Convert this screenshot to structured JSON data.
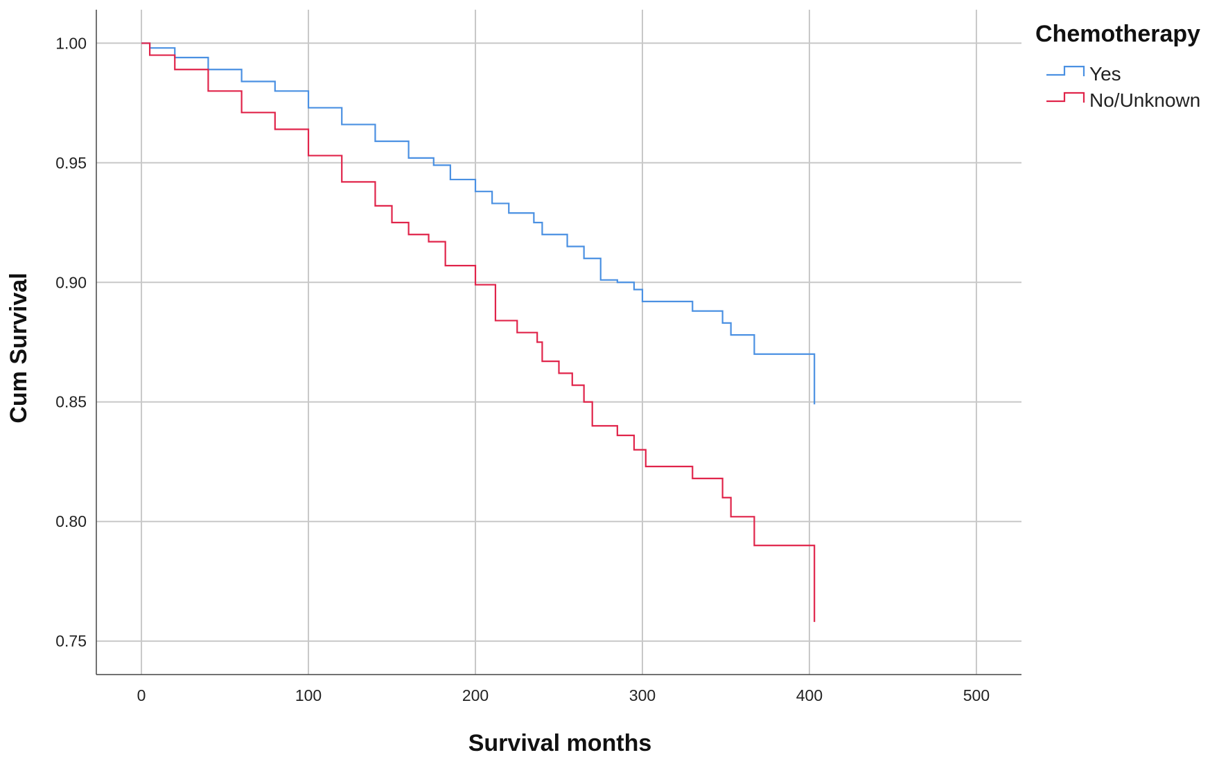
{
  "chart_data": {
    "type": "line",
    "step": true,
    "title": "",
    "xlabel": "Survival months",
    "ylabel": "Cum Survival",
    "xlim": [
      -27,
      527
    ],
    "ylim": [
      0.736,
      1.014
    ],
    "x_ticks": [
      0,
      100,
      200,
      300,
      400,
      500
    ],
    "x_tick_labels": [
      "0",
      "100",
      "200",
      "300",
      "400",
      "500"
    ],
    "y_ticks": [
      0.75,
      0.8,
      0.85,
      0.9,
      0.95,
      1.0
    ],
    "y_tick_labels": [
      "0.75",
      "0.80",
      "0.85",
      "0.90",
      "0.95",
      "1.00"
    ],
    "grid": true,
    "legend": {
      "title": "Chemotherapy",
      "position": "top-right"
    },
    "series": [
      {
        "name": "Yes",
        "color": "#4a90e2",
        "points": [
          [
            0,
            1.0
          ],
          [
            5,
            0.998
          ],
          [
            20,
            0.994
          ],
          [
            40,
            0.989
          ],
          [
            60,
            0.984
          ],
          [
            80,
            0.98
          ],
          [
            100,
            0.973
          ],
          [
            120,
            0.966
          ],
          [
            140,
            0.959
          ],
          [
            160,
            0.952
          ],
          [
            175,
            0.949
          ],
          [
            185,
            0.943
          ],
          [
            200,
            0.938
          ],
          [
            210,
            0.933
          ],
          [
            220,
            0.929
          ],
          [
            235,
            0.925
          ],
          [
            240,
            0.92
          ],
          [
            255,
            0.915
          ],
          [
            265,
            0.91
          ],
          [
            275,
            0.901
          ],
          [
            285,
            0.9
          ],
          [
            295,
            0.897
          ],
          [
            300,
            0.892
          ],
          [
            330,
            0.888
          ],
          [
            348,
            0.883
          ],
          [
            353,
            0.878
          ],
          [
            367,
            0.87
          ],
          [
            403,
            0.87
          ],
          [
            403,
            0.849
          ]
        ]
      },
      {
        "name": "No/Unknown",
        "color": "#e0244a",
        "points": [
          [
            0,
            1.0
          ],
          [
            5,
            0.995
          ],
          [
            20,
            0.989
          ],
          [
            40,
            0.98
          ],
          [
            60,
            0.971
          ],
          [
            80,
            0.964
          ],
          [
            100,
            0.953
          ],
          [
            120,
            0.942
          ],
          [
            140,
            0.932
          ],
          [
            150,
            0.925
          ],
          [
            160,
            0.92
          ],
          [
            172,
            0.917
          ],
          [
            182,
            0.907
          ],
          [
            200,
            0.899
          ],
          [
            212,
            0.884
          ],
          [
            225,
            0.879
          ],
          [
            237,
            0.875
          ],
          [
            240,
            0.867
          ],
          [
            250,
            0.862
          ],
          [
            258,
            0.857
          ],
          [
            265,
            0.85
          ],
          [
            270,
            0.84
          ],
          [
            285,
            0.836
          ],
          [
            295,
            0.83
          ],
          [
            302,
            0.823
          ],
          [
            330,
            0.818
          ],
          [
            348,
            0.81
          ],
          [
            353,
            0.802
          ],
          [
            367,
            0.79
          ],
          [
            403,
            0.79
          ],
          [
            403,
            0.758
          ]
        ]
      }
    ]
  }
}
